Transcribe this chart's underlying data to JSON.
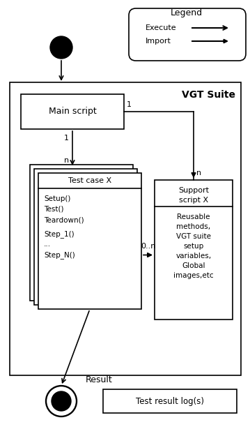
{
  "bg_color": "#ffffff",
  "fig_width": 3.59,
  "fig_height": 6.35,
  "legend_label": "Legend",
  "legend_execute": "Execute",
  "legend_import": "Import",
  "vgt_suite_label": "VGT Suite",
  "main_script_label": "Main script",
  "test_case_label": "Test case X",
  "test_case_content": [
    "Setup()",
    "Test()",
    "Teardown()",
    "",
    "Step_1()",
    "...",
    "Step_N()"
  ],
  "support_script_title": [
    "Support",
    "script X"
  ],
  "support_script_content": [
    "Reusable",
    "methods,",
    "VGT suite",
    "setup",
    "variables,",
    "Global",
    "images,etc"
  ],
  "result_label": "Result",
  "test_result_label": "Test result log(s)"
}
